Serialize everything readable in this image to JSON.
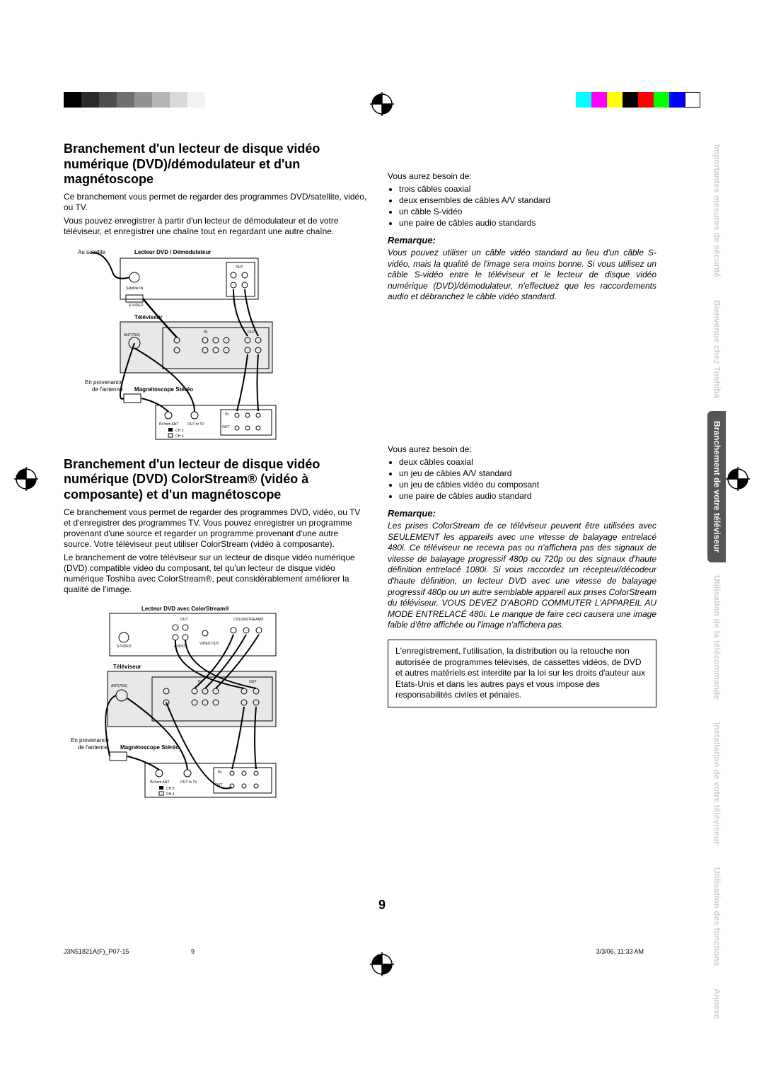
{
  "registration": {
    "gray_shades": [
      "#000000",
      "#2a2a2a",
      "#4d4d4d",
      "#707070",
      "#939393",
      "#b6b6b6",
      "#d9d9d9",
      "#f2f2f2"
    ],
    "colors": [
      "#00ffff",
      "#ff00ff",
      "#ffff00",
      "#000000",
      "#ff0000",
      "#00ff00",
      "#0000ff",
      "#ffffff"
    ]
  },
  "tabs": [
    {
      "label": "Importantes mesures de sécurité",
      "active": false
    },
    {
      "label": "Bienvenue chez Toshiba",
      "active": false
    },
    {
      "label": "Branchement de votre téléviseur",
      "active": true
    },
    {
      "label": "Utilisation de la télécommande",
      "active": false
    },
    {
      "label": "Installation de votre téléviseur",
      "active": false
    },
    {
      "label": "Utilisation des fonctions",
      "active": false
    },
    {
      "label": "Annexe",
      "active": false
    }
  ],
  "section1": {
    "title": "Branchement d'un lecteur de disque vidéo numérique (DVD)/démodulateur et d'un magnétoscope",
    "body1": "Ce branchement vous permet de regarder des programmes DVD/satellite, vidéo, ou TV.",
    "body2": "Vous pouvez enregistrer à partir d'un lecteur de démodulateur et de votre téléviseur, et enregistrer une chaîne tout en regardant une autre chaîne.",
    "diagram_labels": {
      "satellite": "Au satellite",
      "dvd": "Lecteur DVD / Démodulateur",
      "tv": "Téléviseur",
      "antenna1": "En provenance",
      "antenna2": "de l'antenne",
      "vcr": "Magnétoscope Stéréo"
    },
    "needs_intro": "Vous aurez besoin de:",
    "needs": [
      "trois câbles coaxial",
      "deux ensembles de câbles A/V standard",
      "un câble S-vidéo",
      "une paire de câbles audio standards"
    ],
    "remark_h": "Remarque:",
    "remark": "Vous pouvez utiliser un câble vidéo standard au lieu d'un câble S-vidéo, mais la qualité de l'image sera moins bonne. Si vous utilisez un câble S-vidéo entre le téléviseur et le lecteur de disque vidéo numérique (DVD)/démodu­lateur, n'effectuez que les raccordements audio et débranchez le câble vidéo standard."
  },
  "section2": {
    "title": "Branchement d'un lecteur de disque vidéo numérique (DVD) ColorStream® (vidéo à composante) et d'un magnétoscope",
    "body1": "Ce branchement vous permet de regarder des programmes DVD, vidéo, ou TV et d'enregistrer des programmes TV. Vous pouvez enregistrer un programme provenant d'une source et regarder un programme provenant d'une autre source. Votre téléviseur peut utiliser ColorStream (vidéo à composante).",
    "body2": "Le branchement de votre téléviseur sur un lecteur de disque vidéo numérique (DVD) compatible vidéo du composant, tel qu'un lecteur de disque vidéo numérique Toshiba avec ColorStream®, peut considérablement améliorer la qualité de l'image.",
    "diagram_labels": {
      "dvd": "Lecteur DVD avec ColorStream®",
      "tv": "Téléviseur",
      "antenna1": "En provenance",
      "antenna2": "de l'antenne",
      "vcr": "Magnétoscope Stéréo"
    },
    "needs_intro": "Vous aurez besoin de:",
    "needs": [
      "deux câbles coaxial",
      "un jeu de câbles A/V standard",
      "un jeu de câbles vidéo du composant",
      "une paire de câbles audio standard"
    ],
    "remark_h": "Remarque:",
    "remark": "Les prises ColorStream de ce téléviseur peuvent être utilisées avec SEULEMENT les appareils avec une vitesse de balayage entrelacé 480i. Ce téléviseur ne recevra pas ou n'affichera pas des signaux de vitesse de balayage progressif 480p ou 720p ou des signaux d'haute définition entrelacé 1080i. Si vous raccordez un récepteur/décodeur d'haute définition, un lecteur DVD avec une vitesse de balayage progressif 480p ou un autre semblable appareil aux prises ColorStream du téléviseur, VOUS DEVEZ D'ABORD COMMUTER L'APPAREIL AU MODE ENTRELACÉ 480i. Le manque de faire ceci causera une image faible d'être affichée ou l'image n'affichera pas.",
    "notice": "L'enregistrement, l'utilisation, la distribution ou la retouche non autorisée de programmes télévisés, de cassettes vidéos, de DVD et autres matériels est interdite par la loi sur les droits d'auteur aux Etats-Unis et dans les autres pays et vous impose des responsabilités civiles et pénales."
  },
  "page_number": "9",
  "footer": {
    "file": "J3N51821A(F)_P07-15",
    "page": "9",
    "timestamp": "3/3/06, 11:33 AM"
  }
}
